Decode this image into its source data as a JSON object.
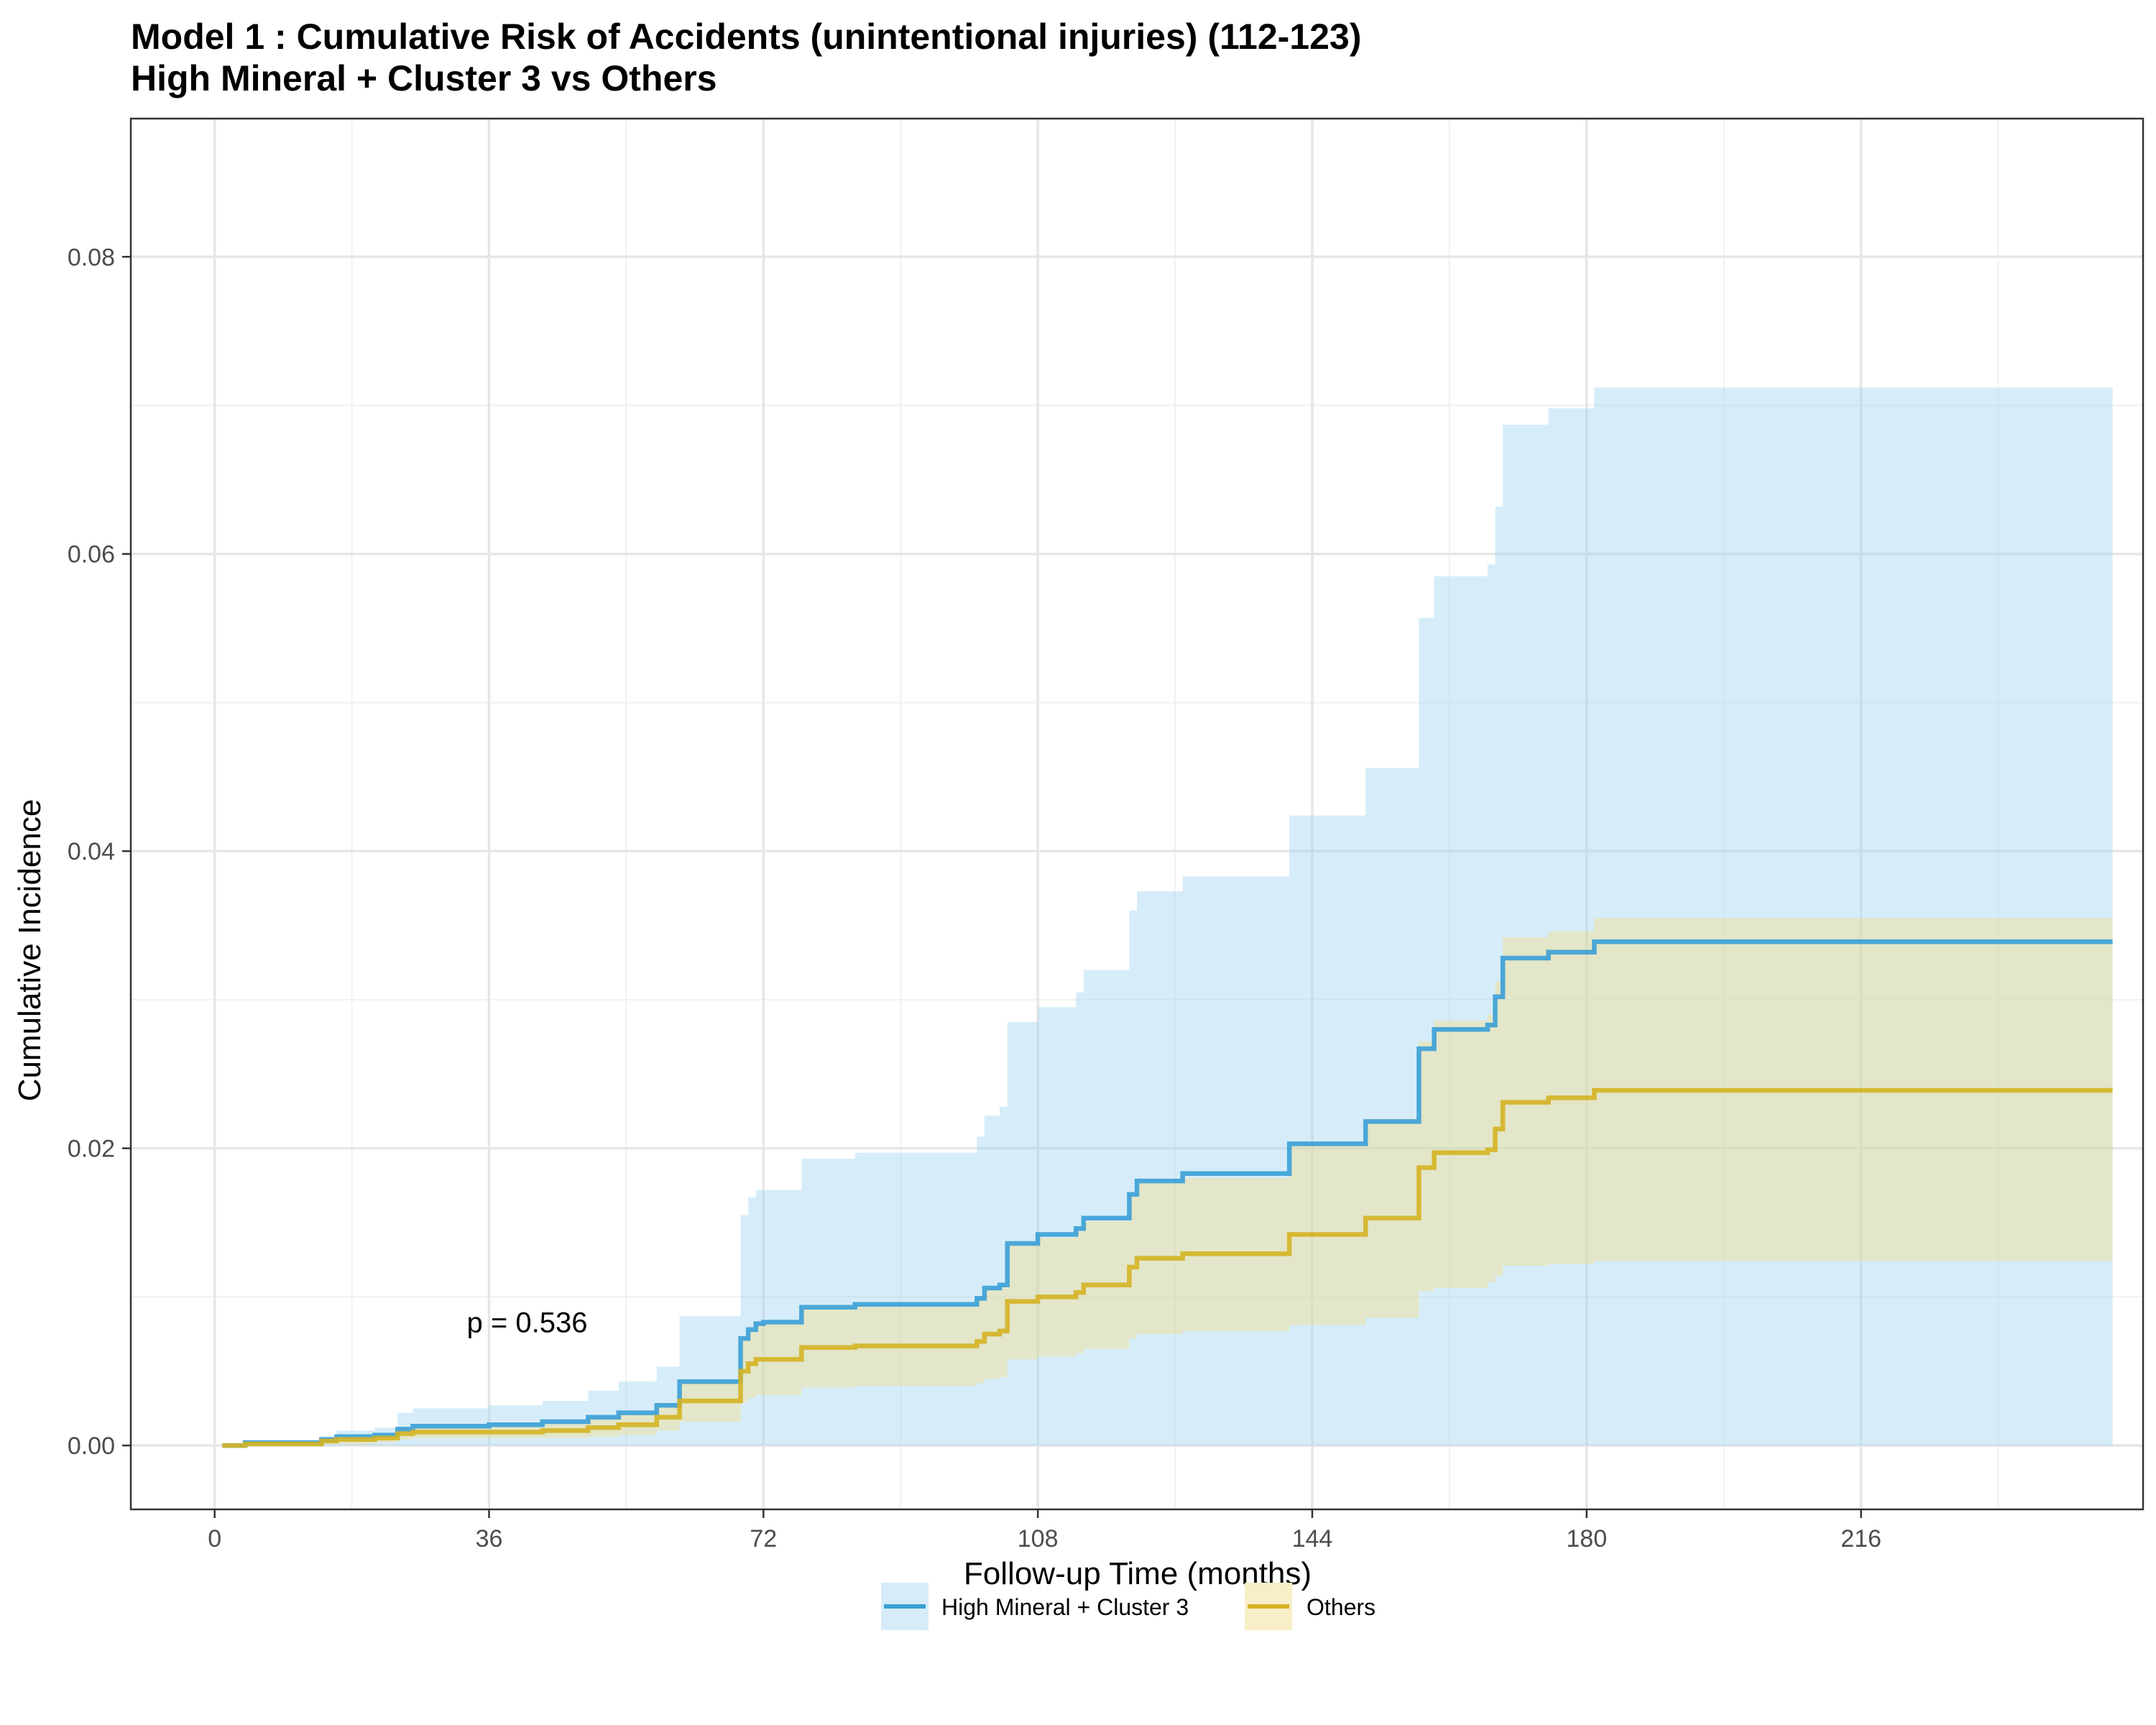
{
  "chart_data": {
    "type": "line",
    "subtype": "cumulative-incidence-step",
    "title": "Model 1 : Cumulative Risk of Accidents (unintentional injuries) (112-123)",
    "subtitle": "High Mineral + Cluster 3 vs Others",
    "xlabel": "Follow-up Time (months)",
    "ylabel": "Cumulative Incidence",
    "xlim": [
      -11,
      253
    ],
    "ylim": [
      -0.0043,
      0.0893
    ],
    "x_ticks": [
      0,
      36,
      72,
      108,
      144,
      180,
      216
    ],
    "x_tick_labels": [
      "0",
      "36",
      "72",
      "108",
      "144",
      "180",
      "216"
    ],
    "y_ticks": [
      0,
      0.02,
      0.04,
      0.06,
      0.08
    ],
    "y_tick_labels": [
      "0.00",
      "0.02",
      "0.04",
      "0.06",
      "0.08"
    ],
    "grid": true,
    "legend_position": "bottom",
    "annotation": {
      "text": "p = 0.536",
      "x": 41,
      "y": 0.0083
    },
    "series": [
      {
        "name": "High Mineral + Cluster 3",
        "color": "#3a9fd6",
        "band_color": "#9dd3f0",
        "x": [
          1,
          4,
          14,
          16,
          21,
          24,
          26,
          36,
          43,
          49,
          53,
          58,
          61,
          69,
          70,
          71,
          72,
          77,
          84,
          100,
          101,
          103,
          104,
          108,
          113,
          114,
          120,
          121,
          127,
          141,
          151,
          158,
          160,
          167,
          168,
          169,
          175,
          181,
          249
        ],
        "y": [
          0,
          0.0002,
          0.0004,
          0.0006,
          0.0007,
          0.0011,
          0.0013,
          0.0014,
          0.0016,
          0.0019,
          0.0022,
          0.0027,
          0.0043,
          0.0072,
          0.0078,
          0.0082,
          0.0083,
          0.0093,
          0.0095,
          0.0099,
          0.0106,
          0.0108,
          0.0136,
          0.0142,
          0.0146,
          0.0153,
          0.0169,
          0.0178,
          0.0183,
          0.0203,
          0.0218,
          0.0267,
          0.028,
          0.0283,
          0.0302,
          0.0328,
          0.0332,
          0.0339,
          0.0339
        ],
        "lower": [
          0,
          0,
          0,
          0,
          0,
          0,
          0,
          0,
          0,
          0,
          0,
          0,
          0,
          0,
          0,
          0,
          0,
          0,
          0,
          0,
          0,
          0,
          0,
          0,
          0,
          0,
          0,
          0,
          0,
          0,
          0,
          0,
          0,
          0,
          0,
          0,
          0,
          0,
          0
        ],
        "upper": [
          0,
          0.0003,
          0.0006,
          0.001,
          0.0012,
          0.0022,
          0.0025,
          0.0027,
          0.003,
          0.0037,
          0.0043,
          0.0053,
          0.0087,
          0.0155,
          0.0167,
          0.0172,
          0.0172,
          0.0193,
          0.0197,
          0.0208,
          0.0222,
          0.0228,
          0.0285,
          0.0295,
          0.0305,
          0.032,
          0.036,
          0.0373,
          0.0383,
          0.0424,
          0.0456,
          0.0557,
          0.0585,
          0.0593,
          0.0632,
          0.0687,
          0.0698,
          0.0712,
          0.0712
        ]
      },
      {
        "name": "Others",
        "color": "#d4b222",
        "band_color": "#f5dd85",
        "x": [
          1,
          4,
          14,
          16,
          21,
          24,
          26,
          36,
          43,
          49,
          53,
          58,
          61,
          69,
          70,
          71,
          72,
          77,
          84,
          100,
          101,
          103,
          104,
          108,
          113,
          114,
          120,
          121,
          127,
          141,
          151,
          158,
          160,
          167,
          168,
          169,
          175,
          181,
          249
        ],
        "y": [
          0,
          0.0001,
          0.0003,
          0.0004,
          0.0005,
          0.0008,
          0.0009,
          0.0009,
          0.001,
          0.0012,
          0.0014,
          0.0019,
          0.003,
          0.005,
          0.0055,
          0.0058,
          0.0058,
          0.0066,
          0.0067,
          0.007,
          0.0075,
          0.0077,
          0.0097,
          0.01,
          0.0103,
          0.0108,
          0.012,
          0.0126,
          0.0129,
          0.0142,
          0.0153,
          0.0187,
          0.0197,
          0.0199,
          0.0213,
          0.0231,
          0.0234,
          0.0239,
          0.0239
        ],
        "lower": [
          0,
          0,
          0.0001,
          0.0001,
          0.0002,
          0.0004,
          0.0005,
          0.0005,
          0.0005,
          0.0006,
          0.0007,
          0.001,
          0.0016,
          0.0029,
          0.0032,
          0.0034,
          0.0034,
          0.0039,
          0.004,
          0.0042,
          0.0045,
          0.0046,
          0.0058,
          0.006,
          0.0062,
          0.0065,
          0.0072,
          0.0075,
          0.0077,
          0.0081,
          0.0086,
          0.0104,
          0.0106,
          0.011,
          0.0114,
          0.0121,
          0.0122,
          0.0124,
          0.0124
        ],
        "upper": [
          0,
          0.0002,
          0.0005,
          0.0007,
          0.0008,
          0.0012,
          0.0013,
          0.0013,
          0.0015,
          0.0018,
          0.0021,
          0.0028,
          0.0044,
          0.0071,
          0.0078,
          0.0082,
          0.0082,
          0.0093,
          0.0094,
          0.0098,
          0.0105,
          0.0108,
          0.0136,
          0.014,
          0.0144,
          0.0151,
          0.0168,
          0.0177,
          0.018,
          0.0203,
          0.022,
          0.0272,
          0.0286,
          0.029,
          0.0312,
          0.0342,
          0.0346,
          0.0355,
          0.0355
        ]
      }
    ]
  }
}
